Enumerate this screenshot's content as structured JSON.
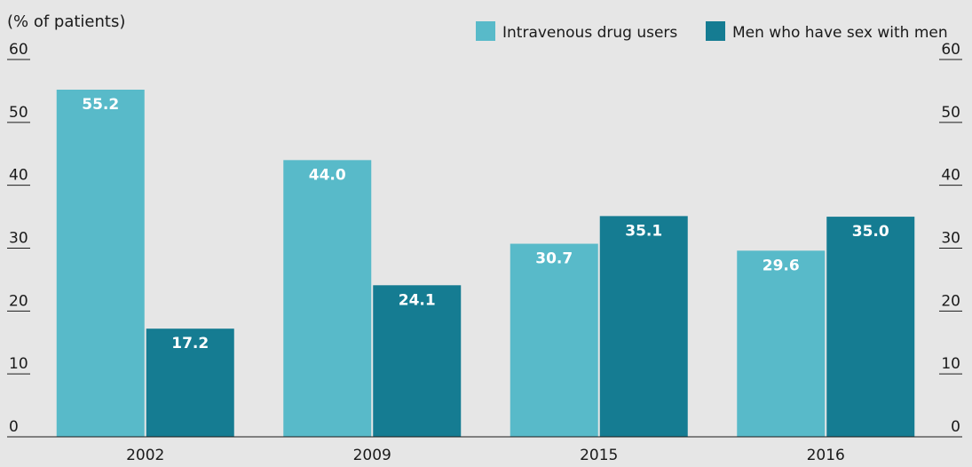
{
  "colors": {
    "background": "#e6e6e6",
    "series1": "#58bac9",
    "series2": "#157c92",
    "axis_line": "#1a1a1a",
    "label_text": "#ffffff"
  },
  "chart_data": {
    "type": "bar",
    "unit_label": "(% of patients)",
    "categories": [
      "2002",
      "2009",
      "2015",
      "2016"
    ],
    "series": [
      {
        "name": "Intravenous drug users",
        "values": [
          55.2,
          44.0,
          30.7,
          29.6
        ],
        "labels": [
          "55.2",
          "44.0",
          "30.7",
          "29.6"
        ]
      },
      {
        "name": "Men who have sex with men",
        "values": [
          17.2,
          24.1,
          35.1,
          35.0
        ],
        "labels": [
          "17.2",
          "24.1",
          "35.1",
          "35.0"
        ]
      }
    ],
    "ylim": [
      0,
      60
    ],
    "yticks": [
      "0",
      "10",
      "20",
      "30",
      "40",
      "50",
      "60"
    ],
    "secondary_axis": true,
    "legend_position": "top-right",
    "grid": false
  }
}
